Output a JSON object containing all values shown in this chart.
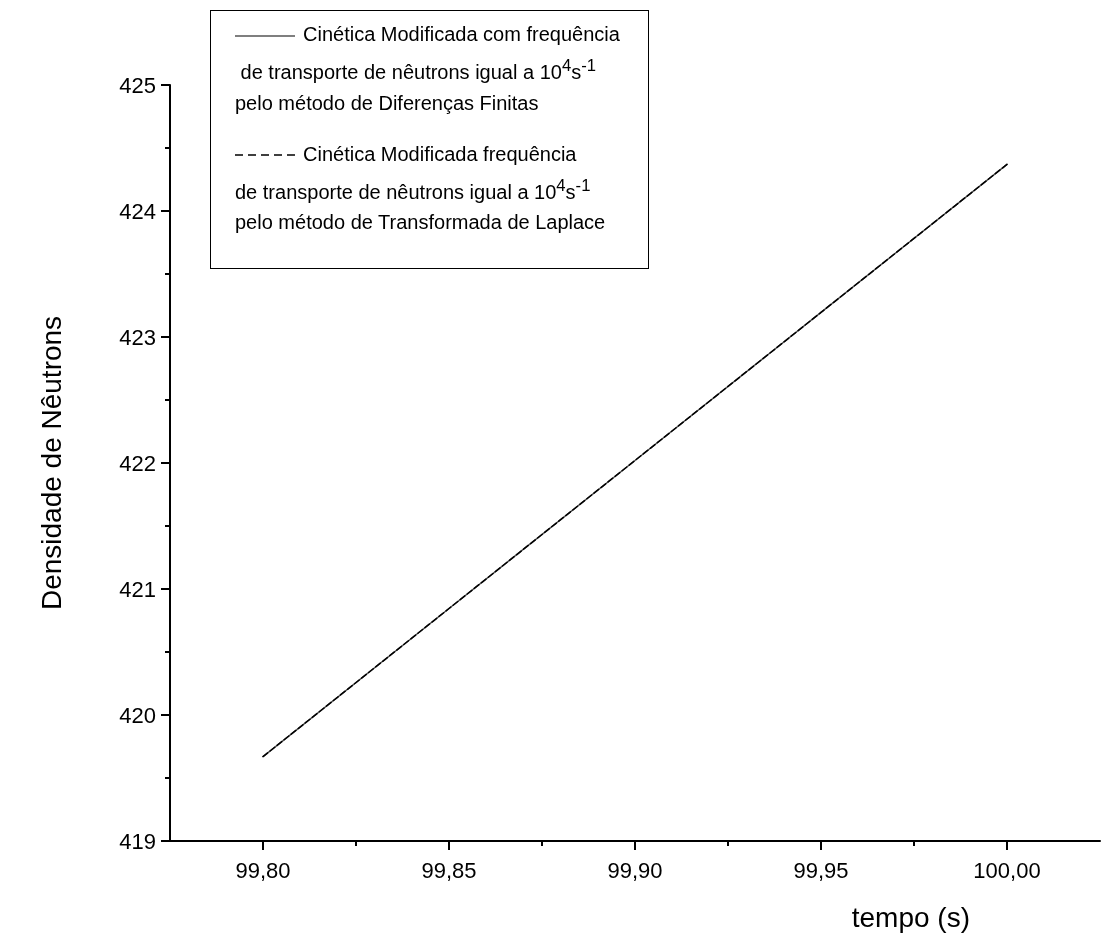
{
  "chart_data": {
    "type": "line",
    "xlabel": "tempo (s)",
    "ylabel": "Densidade de Nêutrons",
    "x": [
      99.8,
      99.85,
      99.9,
      99.95,
      100.0
    ],
    "series": [
      {
        "name": "Cinética Modificada com frequência\n de transporte de nêutrons igual a 10$^{4}$s$^{-1}$\npelo método de Diferenças Finitas",
        "color": "#555555",
        "values": [
          419.67,
          420.845,
          422.02,
          423.195,
          424.37
        ],
        "line_style": "solid"
      },
      {
        "name": "Cinética Modificada frequência\nde transporte de nêutrons igual a 10$^{4}$s$^{-1}$\npelo método de Transformada de Laplace",
        "color": "#000000",
        "values": [
          419.67,
          420.845,
          422.02,
          423.195,
          424.37
        ],
        "line_style": "dashed"
      }
    ],
    "xlim": [
      99.775,
      100.025
    ],
    "xticks": [
      {
        "value": 99.8,
        "label": "99,80"
      },
      {
        "value": 99.85,
        "label": "99,85"
      },
      {
        "value": 99.9,
        "label": "99,90"
      },
      {
        "value": 99.95,
        "label": "99,95"
      },
      {
        "value": 100.0,
        "label": "100,00"
      }
    ],
    "ylim": [
      419,
      425
    ],
    "yticks": [
      419,
      420,
      421,
      422,
      423,
      424,
      425
    ],
    "grid": false,
    "legend": "top left",
    "marker": "none"
  }
}
